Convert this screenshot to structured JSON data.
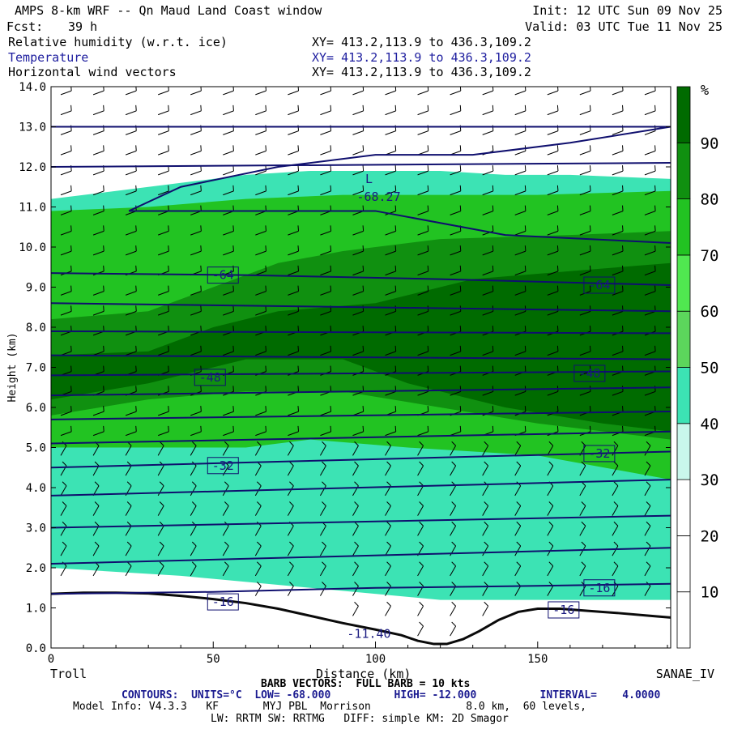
{
  "header": {
    "title": "AMPS 8-km WRF -- Qn Maud Land Coast window",
    "init": "Init: 12 UTC Sun 09 Nov 25",
    "fcst_label": "Fcst:",
    "fcst_value": "39 h",
    "valid": "Valid: 03 UTC Tue 11 Nov 25",
    "fields": [
      {
        "name": "Relative humidity (w.r.t. ice)",
        "xy": "XY= 413.2,113.9 to 436.3,109.2"
      },
      {
        "name": "Temperature",
        "xy": "XY= 413.2,113.9 to 436.3,109.2"
      },
      {
        "name": "Horizontal wind vectors",
        "xy": "XY= 413.2,113.9 to 436.3,109.2"
      }
    ]
  },
  "footer": {
    "left_station": "Troll",
    "right_station": "SANAE_IV",
    "barb_note": "BARB VECTORS:  FULL BARB = 10 kts",
    "contours_note": "CONTOURS:  UNITS=°C  LOW= -68.000          HIGH= -12.000          INTERVAL=    4.0000",
    "model_info": "Model Info: V4.3.3   KF       MYJ PBL  Morrison               8.0 km,  60 levels,",
    "model_info2": "LW: RRTM SW: RRTMG   DIFF: simple KM: 2D Smagor"
  },
  "colors": {
    "temp_contour": "#0f0f6e",
    "terrain": "#0a0a0a",
    "rh_levels": [
      "#ffffff",
      "#ffffff",
      "#ffffff",
      "#c9f7ec",
      "#3ce3b4",
      "#5cd65c",
      "#50e850",
      "#22c322",
      "#109010",
      "#006b00"
    ]
  },
  "chart_data": {
    "type": "heatmap",
    "xlabel": "Distance (km)",
    "ylabel": "Height (km)",
    "xlim": [
      0,
      191
    ],
    "ylim": [
      0,
      14
    ],
    "x_ticks": [
      0,
      50,
      100,
      150
    ],
    "y_ticks": [
      "0.0",
      "1.0",
      "2.0",
      "3.0",
      "4.0",
      "5.0",
      "6.0",
      "7.0",
      "8.0",
      "9.0",
      "10.0",
      "11.0",
      "12.0",
      "13.0",
      "14.0"
    ],
    "colorbar": {
      "unit": "%",
      "ticks": [
        10,
        20,
        30,
        40,
        50,
        60,
        70,
        80,
        90
      ],
      "levels": [
        0,
        10,
        20,
        30,
        40,
        50,
        60,
        70,
        80,
        90,
        100
      ]
    },
    "terrain_km": [
      [
        0,
        1.35
      ],
      [
        10,
        1.38
      ],
      [
        20,
        1.38
      ],
      [
        30,
        1.36
      ],
      [
        40,
        1.3
      ],
      [
        50,
        1.22
      ],
      [
        60,
        1.12
      ],
      [
        70,
        0.98
      ],
      [
        80,
        0.8
      ],
      [
        90,
        0.62
      ],
      [
        100,
        0.46
      ],
      [
        108,
        0.32
      ],
      [
        113,
        0.18
      ],
      [
        118,
        0.1
      ],
      [
        122,
        0.1
      ],
      [
        127,
        0.22
      ],
      [
        132,
        0.42
      ],
      [
        138,
        0.7
      ],
      [
        144,
        0.9
      ],
      [
        150,
        0.98
      ],
      [
        157,
        0.98
      ],
      [
        165,
        0.93
      ],
      [
        175,
        0.87
      ],
      [
        185,
        0.8
      ],
      [
        191,
        0.76
      ]
    ],
    "humid_bands": [
      {
        "value": 40,
        "top": [
          [
            0,
            11.2
          ],
          [
            20,
            11.4
          ],
          [
            40,
            11.6
          ],
          [
            60,
            11.8
          ],
          [
            80,
            11.9
          ],
          [
            100,
            11.9
          ],
          [
            120,
            11.9
          ],
          [
            140,
            11.8
          ],
          [
            160,
            11.8
          ],
          [
            191,
            11.7
          ]
        ],
        "bottom": [
          [
            0,
            2.0
          ],
          [
            40,
            1.8
          ],
          [
            80,
            1.5
          ],
          [
            120,
            1.2
          ],
          [
            160,
            1.2
          ],
          [
            191,
            1.2
          ]
        ]
      },
      {
        "value": 70,
        "top": [
          [
            0,
            10.9
          ],
          [
            30,
            11.0
          ],
          [
            60,
            11.2
          ],
          [
            90,
            11.3
          ],
          [
            120,
            11.3
          ],
          [
            150,
            11.3
          ],
          [
            191,
            11.4
          ]
        ],
        "bottom": [
          [
            0,
            5.0
          ],
          [
            30,
            5.0
          ],
          [
            60,
            5.0
          ],
          [
            80,
            5.2
          ],
          [
            110,
            5.0
          ],
          [
            150,
            4.8
          ],
          [
            191,
            4.2
          ]
        ]
      },
      {
        "value": 80,
        "top": [
          [
            0,
            8.2
          ],
          [
            30,
            8.4
          ],
          [
            50,
            9.0
          ],
          [
            70,
            9.6
          ],
          [
            90,
            9.9
          ],
          [
            120,
            10.2
          ],
          [
            160,
            10.3
          ],
          [
            191,
            10.4
          ]
        ],
        "bottom": [
          [
            0,
            5.8
          ],
          [
            30,
            6.2
          ],
          [
            60,
            6.4
          ],
          [
            90,
            6.4
          ],
          [
            120,
            6.0
          ],
          [
            150,
            5.6
          ],
          [
            191,
            5.2
          ]
        ]
      },
      {
        "value": 90,
        "top": [
          [
            0,
            7.3
          ],
          [
            30,
            7.4
          ],
          [
            50,
            8.0
          ],
          [
            70,
            8.4
          ],
          [
            100,
            8.6
          ],
          [
            130,
            9.2
          ],
          [
            160,
            9.4
          ],
          [
            191,
            9.6
          ]
        ],
        "bottom": [
          [
            0,
            6.2
          ],
          [
            30,
            6.6
          ],
          [
            60,
            7.2
          ],
          [
            90,
            7.2
          ],
          [
            110,
            6.6
          ],
          [
            140,
            6.0
          ],
          [
            170,
            5.6
          ],
          [
            191,
            5.4
          ]
        ]
      }
    ],
    "isotherms": [
      {
        "label": "-68.27",
        "points": [
          [
            24,
            10.9
          ],
          [
            40,
            11.5
          ],
          [
            70,
            12.0
          ],
          [
            100,
            12.3
          ],
          [
            130,
            12.3
          ],
          [
            160,
            12.6
          ],
          [
            191,
            13.0
          ]
        ]
      },
      {
        "label": "",
        "points": [
          [
            0,
            13.0
          ],
          [
            191,
            13.0
          ]
        ]
      },
      {
        "label": "",
        "points": [
          [
            0,
            12.0
          ],
          [
            191,
            12.1
          ]
        ]
      },
      {
        "label": "",
        "points": [
          [
            24,
            10.9
          ],
          [
            100,
            10.9
          ],
          [
            140,
            10.3
          ],
          [
            191,
            10.1
          ]
        ]
      },
      {
        "label": "-64",
        "points": [
          [
            0,
            9.35
          ],
          [
            60,
            9.3
          ],
          [
            120,
            9.2
          ],
          [
            191,
            9.05
          ]
        ]
      },
      {
        "label": "",
        "points": [
          [
            0,
            8.6
          ],
          [
            191,
            8.4
          ]
        ]
      },
      {
        "label": "",
        "points": [
          [
            0,
            7.9
          ],
          [
            191,
            7.85
          ]
        ]
      },
      {
        "label": "",
        "points": [
          [
            0,
            7.3
          ],
          [
            191,
            7.2
          ]
        ]
      },
      {
        "label": "-48",
        "points": [
          [
            0,
            6.8
          ],
          [
            191,
            6.9
          ]
        ]
      },
      {
        "label": "",
        "points": [
          [
            0,
            6.3
          ],
          [
            191,
            6.5
          ]
        ]
      },
      {
        "label": "",
        "points": [
          [
            0,
            5.7
          ],
          [
            191,
            5.9
          ]
        ]
      },
      {
        "label": "",
        "points": [
          [
            0,
            5.1
          ],
          [
            191,
            5.4
          ]
        ]
      },
      {
        "label": "-32",
        "points": [
          [
            0,
            4.5
          ],
          [
            191,
            4.9
          ]
        ]
      },
      {
        "label": "",
        "points": [
          [
            0,
            3.8
          ],
          [
            191,
            4.2
          ]
        ]
      },
      {
        "label": "",
        "points": [
          [
            0,
            3.0
          ],
          [
            191,
            3.3
          ]
        ]
      },
      {
        "label": "",
        "points": [
          [
            0,
            2.1
          ],
          [
            191,
            2.5
          ]
        ]
      },
      {
        "label": "-16",
        "points": [
          [
            0,
            1.35
          ],
          [
            50,
            1.4
          ],
          [
            100,
            1.5
          ],
          [
            150,
            1.55
          ],
          [
            191,
            1.6
          ]
        ]
      }
    ],
    "labels": [
      {
        "text": "-64",
        "x": 53,
        "y": 9.3
      },
      {
        "text": "-64",
        "x": 169,
        "y": 9.05
      },
      {
        "text": "-48",
        "x": 49,
        "y": 6.75
      },
      {
        "text": "-48",
        "x": 166,
        "y": 6.85
      },
      {
        "text": "-32",
        "x": 53,
        "y": 4.55
      },
      {
        "text": "-32",
        "x": 169,
        "y": 4.85
      },
      {
        "text": "-16",
        "x": 169,
        "y": 1.5
      },
      {
        "text": "-16",
        "x": 53,
        "y": 1.15
      },
      {
        "text": "-16",
        "x": 158,
        "y": 0.95
      },
      {
        "text": "L",
        "x": 98,
        "y": 11.7
      },
      {
        "text": "-68.27",
        "x": 101,
        "y": 11.25
      },
      {
        "text": "-11.40",
        "x": 98,
        "y": 0.35
      }
    ]
  }
}
